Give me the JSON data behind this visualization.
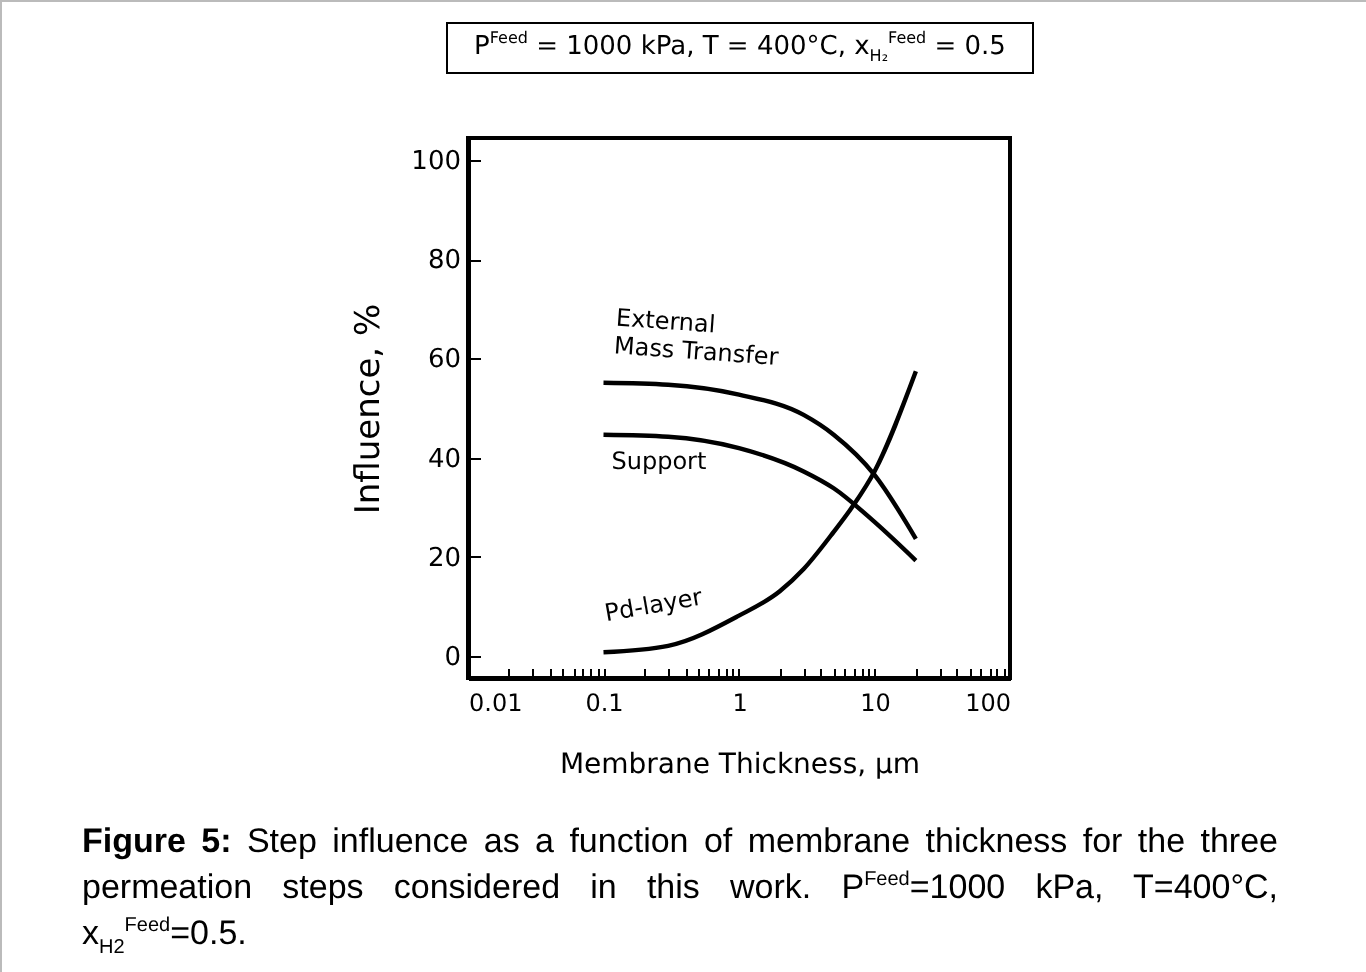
{
  "chart_data": {
    "type": "line",
    "title": "P$^{Feed}$ = 1000 kPa, T = 400°C, x$_{H₂}$$^{Feed}$ = 0.5",
    "xlabel": "Membrane Thickness, μm",
    "ylabel": "Influence, %",
    "log": "x",
    "xlim": [
      0.01,
      100
    ],
    "ylim": [
      -4.5,
      104.5
    ],
    "xticks": [
      0.01,
      {
        "value": 0.02,
        "label": null
      },
      {
        "value": 0.03,
        "label": null
      },
      {
        "value": 0.04,
        "label": null
      },
      {
        "value": 0.05,
        "label": null
      },
      {
        "value": 0.06,
        "label": null
      },
      {
        "value": 0.07,
        "label": null
      },
      {
        "value": 0.08,
        "label": null
      },
      {
        "value": 0.09,
        "label": null
      },
      0.1,
      {
        "value": 0.2,
        "label": null
      },
      {
        "value": 0.3,
        "label": null
      },
      {
        "value": 0.4,
        "label": null
      },
      {
        "value": 0.5,
        "label": null
      },
      {
        "value": 0.6,
        "label": null
      },
      {
        "value": 0.7,
        "label": null
      },
      {
        "value": 0.8,
        "label": null
      },
      {
        "value": 0.9,
        "label": null
      },
      1,
      {
        "value": 2,
        "label": null
      },
      {
        "value": 3,
        "label": null
      },
      {
        "value": 4,
        "label": null
      },
      {
        "value": 5,
        "label": null
      },
      {
        "value": 6,
        "label": null
      },
      {
        "value": 7,
        "label": null
      },
      {
        "value": 8,
        "label": null
      },
      {
        "value": 9,
        "label": null
      },
      10,
      {
        "value": 20,
        "label": null
      },
      {
        "value": 30,
        "label": null
      },
      {
        "value": 40,
        "label": null
      },
      {
        "value": 50,
        "label": null
      },
      {
        "value": 60,
        "label": null
      },
      {
        "value": 70,
        "label": null
      },
      {
        "value": 80,
        "label": null
      },
      {
        "value": 90,
        "label": null
      },
      100
    ],
    "yticks": [
      0,
      20,
      40,
      60,
      80,
      100
    ],
    "grid": false,
    "line_style": "solid",
    "series": [
      {
        "name": "External Mass Transfer",
        "color": "#000000",
        "x": [
          0.1,
          0.3,
          1,
          3,
          5,
          10,
          20.2
        ],
        "values": [
          55.1,
          54.7,
          52.7,
          48.6,
          44.6,
          36.5,
          23.6
        ]
      },
      {
        "name": "Support",
        "color": "#000000",
        "x": [
          0.1,
          0.3,
          1,
          3,
          5,
          10,
          20.2
        ],
        "values": [
          44.6,
          44.2,
          41.9,
          37.2,
          33.8,
          27.0,
          19.2
        ]
      },
      {
        "name": "Pd-layer",
        "color": "#000000",
        "x": [
          0.1,
          0.3,
          1,
          2,
          3,
          5,
          7,
          10,
          20.2
        ],
        "values": [
          0.7,
          2.0,
          8.1,
          13.0,
          17.5,
          25.0,
          30.4,
          37.2,
          57.4
        ]
      }
    ],
    "annotations": [
      "Figure 5: Step influence as a function of membrane thickness for the three permeation steps considered in this work. P$^{Feed}$=1000 kPa, T=400°C, x$_{H2}$$^{Feed}$=0.5."
    ]
  }
}
